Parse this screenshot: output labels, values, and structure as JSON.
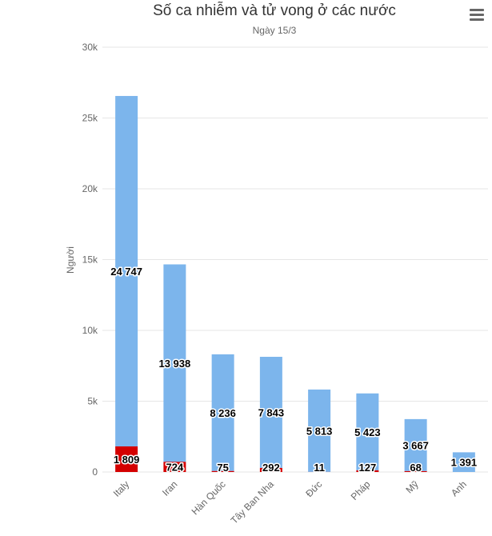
{
  "chart_data": {
    "type": "bar",
    "stacked": true,
    "title": "Số ca nhiễm và tử vong ở các nước",
    "subtitle": "Ngày 15/3",
    "xlabel": "",
    "ylabel": "Người",
    "ylim": [
      0,
      30000
    ],
    "yticks": [
      "0",
      "5k",
      "10k",
      "15k",
      "20k",
      "25k",
      "30k"
    ],
    "grid": true,
    "categories": [
      "Italy",
      "Iran",
      "Hàn Quốc",
      "Tây Ban Nha",
      "Đức",
      "Pháp",
      "Mỹ",
      "Anh"
    ],
    "series": [
      {
        "color": "#7cb5ec",
        "values": [
          24747,
          13938,
          8236,
          7843,
          5813,
          5423,
          3667,
          1391
        ],
        "labels": [
          "24 747",
          "13 938",
          "8 236",
          "7 843",
          "5 813",
          "5 423",
          "3 667",
          "1 391"
        ]
      },
      {
        "color": "#d40000",
        "values": [
          1809,
          724,
          75,
          292,
          11,
          127,
          68,
          null
        ],
        "labels": [
          "1 809",
          "724",
          "75",
          "292",
          "11",
          "127",
          "68",
          ""
        ]
      }
    ]
  },
  "menu": {
    "icon": "hamburger-menu-icon"
  }
}
